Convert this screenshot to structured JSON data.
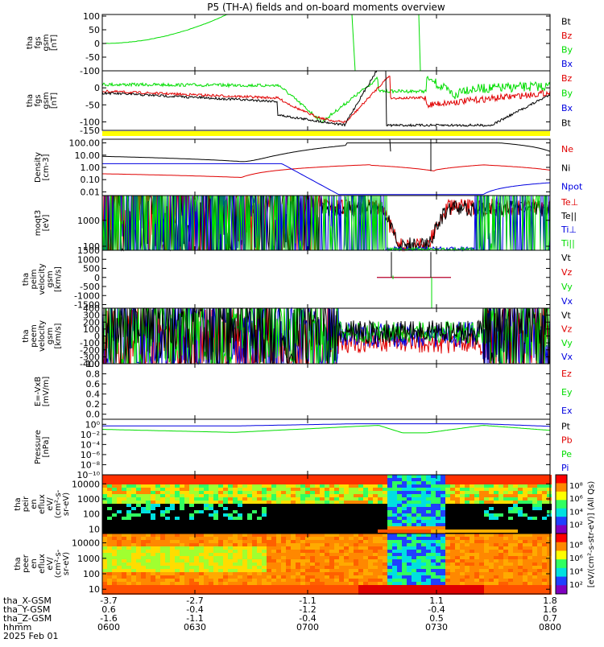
{
  "title": "P5 (TH-A) fields and on-board moments overview",
  "colors": {
    "black": "#000000",
    "red": "#e00000",
    "green": "#00dd00",
    "blue": "#0000e0",
    "yellow": "#ffff00"
  },
  "chart_data": [
    {
      "type": "line",
      "id": "fgs_gsm",
      "ylabel": [
        "tha",
        "fgs",
        "gsm",
        "[nT]"
      ],
      "ylim": [
        -100,
        100
      ],
      "yticks": [
        "100",
        "50",
        "0",
        "-50",
        "-100"
      ],
      "legend": [
        {
          "name": "Bt",
          "color": "black"
        },
        {
          "name": "Bz",
          "color": "red"
        },
        {
          "name": "By",
          "color": "green"
        },
        {
          "name": "Bx",
          "color": "blue"
        }
      ]
    },
    {
      "type": "line",
      "id": "fgs_gse",
      "ylabel": [
        "tha",
        "fgs",
        "gsm",
        "[nT]"
      ],
      "ylim": [
        -125,
        50
      ],
      "yticks": [
        "0",
        "-50",
        "-100"
      ],
      "ytick_partial": "-150",
      "legend": [
        {
          "name": "Bz",
          "color": "red"
        },
        {
          "name": "By",
          "color": "green"
        },
        {
          "name": "Bx",
          "color": "blue"
        },
        {
          "name": "Bt",
          "color": "black"
        }
      ]
    },
    {
      "type": "line",
      "id": "density",
      "ylabel": [
        "Density",
        "[cm-3]"
      ],
      "scale": "log",
      "ylim": [
        0.005,
        200
      ],
      "yticks": [
        "100.00",
        "10.00",
        "1.00",
        "0.10",
        "0.01"
      ],
      "legend": [
        {
          "name": "Ne",
          "color": "red"
        },
        {
          "name": "Ni",
          "color": "black"
        },
        {
          "name": "Npot",
          "color": "blue"
        }
      ]
    },
    {
      "type": "line",
      "id": "temperature",
      "ylabel": [
        "moqt3",
        "[eV]"
      ],
      "scale": "log",
      "ylim": [
        70,
        9000
      ],
      "yticks": [
        "1000",
        "100"
      ],
      "legend": [
        {
          "name": "Te⊥",
          "color": "red"
        },
        {
          "name": "Te||",
          "color": "black"
        },
        {
          "name": "Ti⊥",
          "color": "blue"
        },
        {
          "name": "Ti||",
          "color": "green"
        }
      ]
    },
    {
      "type": "line",
      "id": "peim_velocity",
      "ylabel": [
        "tha",
        "peim",
        "velocity",
        "gsm",
        "[km/s]"
      ],
      "ylim": [
        -1700,
        1500
      ],
      "yticks": [
        "1500",
        "1000",
        "500",
        "0",
        "-500",
        "-1000",
        "-1500"
      ],
      "legend": [
        {
          "name": "Vt",
          "color": "black"
        },
        {
          "name": "Vz",
          "color": "red"
        },
        {
          "name": "Vy",
          "color": "green"
        },
        {
          "name": "Vx",
          "color": "blue"
        }
      ]
    },
    {
      "type": "line",
      "id": "peem_velocity",
      "ylabel": [
        "tha",
        "peem",
        "velocity",
        "gsm",
        "[km/s]"
      ],
      "ylim": [
        -400,
        400
      ],
      "yticks": [
        "400",
        "300",
        "200",
        "100",
        "0",
        "-100",
        "-200",
        "-300",
        "-400"
      ],
      "legend": [
        {
          "name": "Vt",
          "color": "black"
        },
        {
          "name": "Vz",
          "color": "red"
        },
        {
          "name": "Vy",
          "color": "green"
        },
        {
          "name": "Vx",
          "color": "blue"
        }
      ]
    },
    {
      "type": "line",
      "id": "efield",
      "ylabel": [
        "E=-VxB",
        "[mV/m]"
      ],
      "ylim": [
        -0.1,
        1.0
      ],
      "yticks": [
        "1.0",
        "0.8",
        "0.6",
        "0.4",
        "0.2",
        "0.0"
      ],
      "legend": [
        {
          "name": "Ez",
          "color": "red"
        },
        {
          "name": "Ey",
          "color": "green"
        },
        {
          "name": "Ex",
          "color": "blue"
        }
      ]
    },
    {
      "type": "line",
      "id": "pressure",
      "ylabel": [
        "Pressure",
        "[nPa]"
      ],
      "scale": "log",
      "yticks": [
        "10⁰",
        "10⁻²",
        "10⁻⁴",
        "10⁻⁶",
        "10⁻⁸",
        "10⁻¹⁰"
      ],
      "legend": [
        {
          "name": "Pt",
          "color": "black"
        },
        {
          "name": "Pb",
          "color": "red"
        },
        {
          "name": "Pe",
          "color": "green"
        },
        {
          "name": "Pi",
          "color": "blue"
        }
      ]
    },
    {
      "type": "heatmap",
      "id": "peir_eflux",
      "ylabel": [
        "tha",
        "peir",
        "en",
        "eflux",
        "eV/",
        "(cm²-s-",
        "sr-eV)"
      ],
      "scale": "log",
      "yticks": [
        "10000",
        "1000",
        "100",
        "10"
      ],
      "colorbar_ticks": [
        "10⁸",
        "10⁶",
        "10⁴",
        "10²"
      ]
    },
    {
      "type": "heatmap",
      "id": "peer_eflux",
      "ylabel": [
        "tha",
        "peer",
        "en",
        "eflux",
        "eV/",
        "(cm²-s-",
        "sr-eV)"
      ],
      "scale": "log",
      "yticks": [
        "10000",
        "1000",
        "100",
        "10"
      ],
      "colorbar_ticks": [
        "10⁸",
        "10⁶",
        "10⁴",
        "10²"
      ]
    }
  ],
  "colorbar_label": "[eV/(cm²-s-str-eV)] (All Qs)",
  "xaxis": {
    "row_labels": [
      "tha_X-GSM",
      "tha_Y-GSM",
      "tha_Z-GSM",
      "hhmm",
      "2025 Feb 01"
    ],
    "ticks": [
      {
        "x": "-3.7",
        "y": "0.6",
        "z": "-1.6",
        "t": "0600"
      },
      {
        "x": "-2.7",
        "y": "-0.4",
        "z": "-1.1",
        "t": "0630"
      },
      {
        "x": "-1.1",
        "y": "-1.2",
        "z": "-0.4",
        "t": "0700"
      },
      {
        "x": "1.1",
        "y": "-0.4",
        "z": "0.5",
        "t": "0730"
      },
      {
        "x": "1.8",
        "y": "1.6",
        "z": "0.7",
        "t": "0800"
      }
    ]
  }
}
